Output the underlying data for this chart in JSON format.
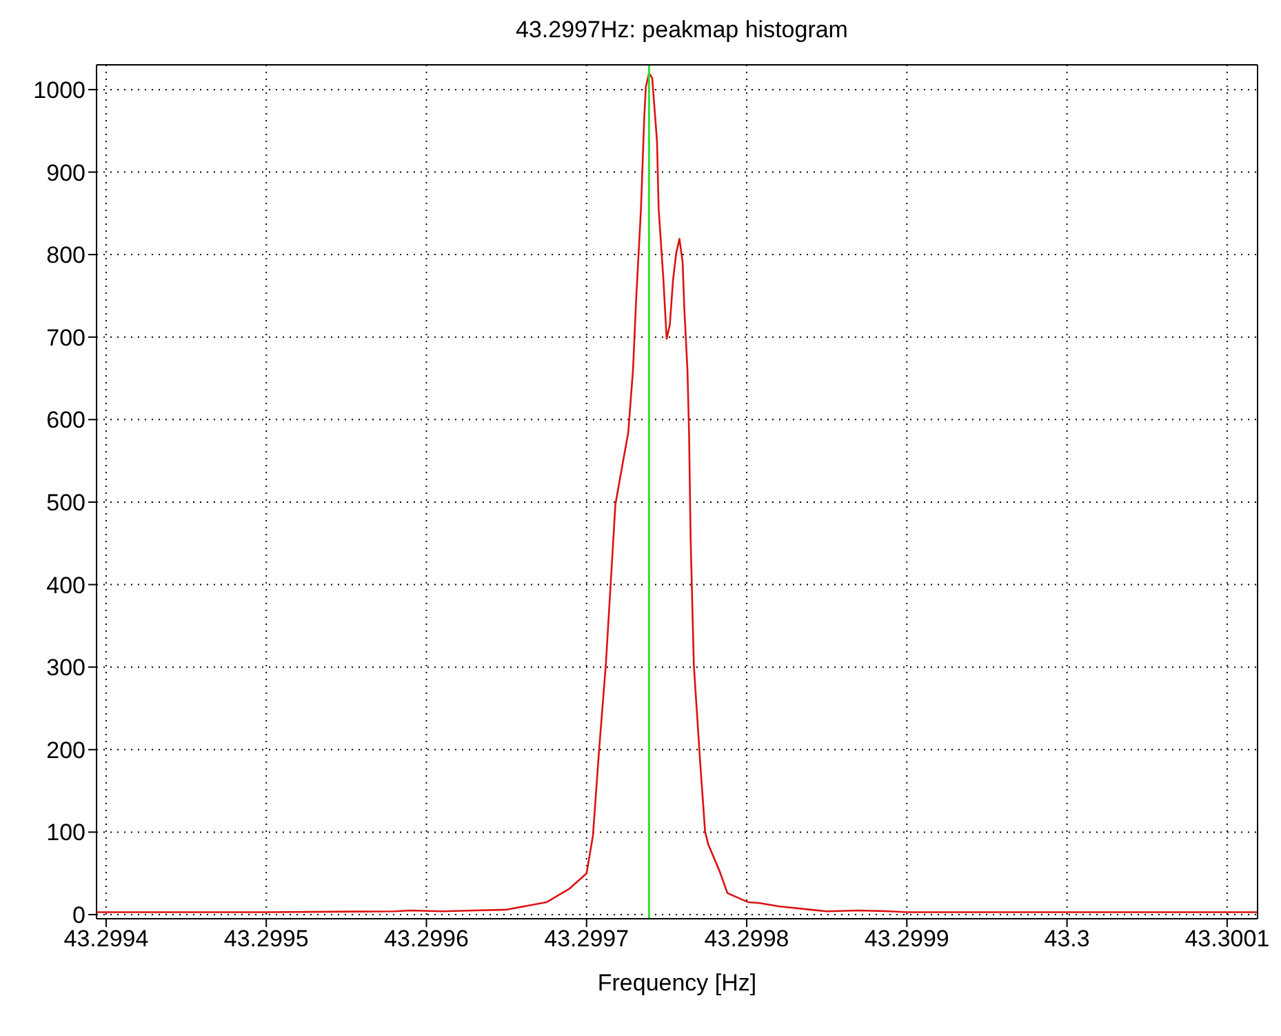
{
  "chart_data": {
    "type": "line",
    "title": "43.2997Hz: peakmap histogram",
    "xlabel": "Frequency [Hz]",
    "x": [
      43.299394,
      43.2995,
      43.29958,
      43.29959,
      43.29961,
      43.29963,
      43.29965,
      43.299675,
      43.299689,
      43.2997,
      43.299704,
      43.299708,
      43.299712,
      43.299715,
      43.299718,
      43.299721,
      43.299726,
      43.299729,
      43.299731,
      43.299734,
      43.299736,
      43.299737,
      43.299739,
      43.299741,
      43.299744,
      43.299745,
      43.299748,
      43.29975,
      43.299752,
      43.299754,
      43.299756,
      43.299758,
      43.29976,
      43.299761,
      43.299763,
      43.299764,
      43.299765,
      43.299767,
      43.299771,
      43.299774,
      43.299776,
      43.299783,
      43.299788,
      43.299801,
      43.299808,
      43.29982,
      43.29984,
      43.29985,
      43.29987,
      43.29989,
      43.2999,
      43.300119
    ],
    "series": [
      {
        "color": "#dd1111",
        "values": [
          3,
          3,
          4,
          5,
          4,
          5,
          6,
          15,
          31,
          50,
          96,
          204,
          302,
          399,
          497,
          530,
          584,
          660,
          747,
          856,
          965,
          1003,
          1020,
          1014,
          937,
          856,
          769,
          698,
          715,
          769,
          802,
          819,
          791,
          736,
          660,
          584,
          454,
          302,
          183,
          101,
          85,
          53,
          26,
          15,
          14,
          10,
          6,
          4,
          5,
          4,
          3,
          3
        ]
      }
    ],
    "xlim": [
      43.299394,
      43.300119
    ],
    "xticks": [
      43.2994,
      43.2995,
      43.2996,
      43.2997,
      43.2998,
      43.2999,
      43.3,
      43.3001
    ],
    "ylim": [
      -5,
      1030
    ],
    "yticks": [
      0,
      100,
      200,
      300,
      400,
      500,
      600,
      700,
      800,
      900,
      1000
    ],
    "ref_lines": [
      {
        "axis": "x",
        "value": 43.299739,
        "color": "#33dd33"
      }
    ],
    "grid": true,
    "marker": "none",
    "line_style": "solid",
    "legend": false
  }
}
